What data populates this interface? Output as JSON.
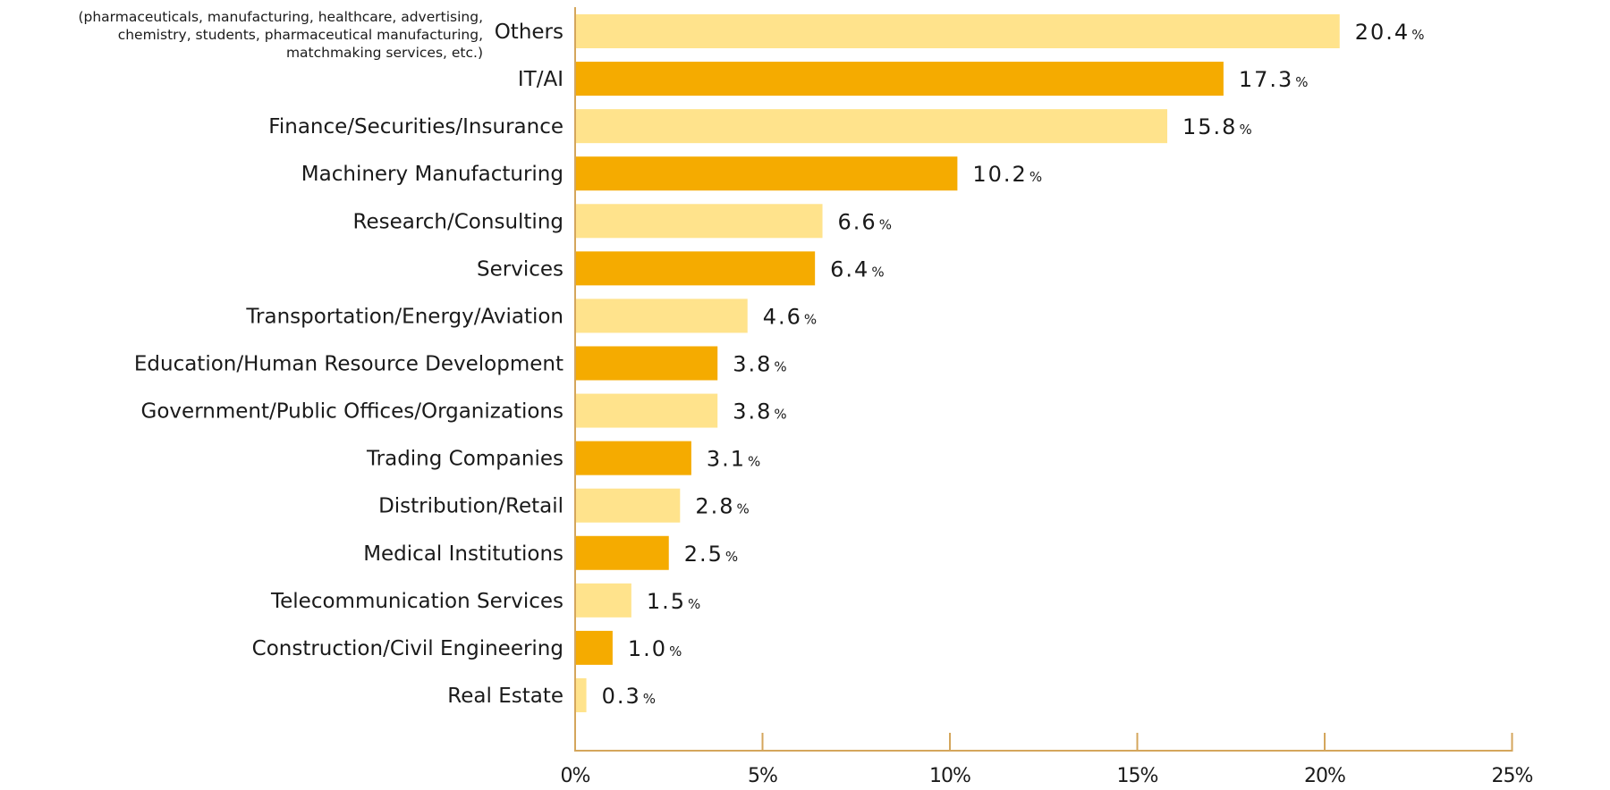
{
  "chart_data": {
    "type": "bar",
    "orientation": "horizontal",
    "title": "",
    "xlabel": "",
    "ylabel": "",
    "xlim": [
      0,
      25
    ],
    "x_ticks": [
      0,
      5,
      10,
      15,
      20,
      25
    ],
    "x_tick_labels": [
      "0%",
      "5%",
      "10%",
      "15%",
      "20%",
      "25%"
    ],
    "grid": false,
    "legend": null,
    "value_suffix": "%",
    "colors": {
      "light": "#FFE38C",
      "dark": "#F5AB00",
      "axis": "#D4A65C",
      "text": "#1a1a1a"
    },
    "categories": [
      "Others",
      "IT/AI",
      "Finance/Securities/Insurance",
      "Machinery Manufacturing",
      "Research/Consulting",
      "Services",
      "Transportation/Energy/Aviation",
      "Education/Human Resource Development",
      "Government/Public Offices/Organizations",
      "Trading Companies",
      "Distribution/Retail",
      "Medical Institutions",
      "Telecommunication Services",
      "Construction/Civil Engineering",
      "Real Estate"
    ],
    "values": [
      20.4,
      17.3,
      15.8,
      10.2,
      6.6,
      6.4,
      4.6,
      3.8,
      3.8,
      3.1,
      2.8,
      2.5,
      1.5,
      1.0,
      0.3
    ],
    "value_labels": [
      "20.4",
      "17.3",
      "15.8",
      "10.2",
      "6.6",
      "6.4",
      "4.6",
      "3.8",
      "3.8",
      "3.1",
      "2.8",
      "2.5",
      "1.5",
      "1.0",
      "0.3"
    ],
    "bar_color_pattern": [
      "light",
      "dark"
    ],
    "annotations": [
      {
        "category": "Others",
        "lines": [
          "(pharmaceuticals, manufacturing, healthcare, advertising,",
          "chemistry, students, pharmaceutical manufacturing,",
          "matchmaking services, etc.)"
        ]
      }
    ]
  }
}
